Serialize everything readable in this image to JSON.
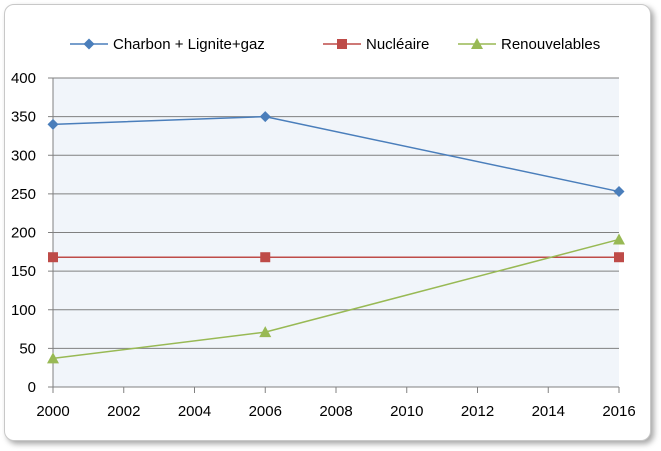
{
  "chart_data": {
    "type": "line",
    "title": "",
    "xlabel": "",
    "ylabel": "",
    "xlim": [
      2000,
      2016
    ],
    "ylim": [
      0,
      400
    ],
    "x_ticks": [
      "2000",
      "2002",
      "2004",
      "2006",
      "2008",
      "2010",
      "2012",
      "2014",
      "2016"
    ],
    "y_ticks": [
      "0",
      "50",
      "100",
      "150",
      "200",
      "250",
      "300",
      "350",
      "400"
    ],
    "grid": "horizontal",
    "legend_position": "top",
    "plot_background": "#f1f5fa",
    "series": [
      {
        "name": "Charbon + Lignite+gaz",
        "color": "#4a7ebb",
        "marker": "diamond",
        "x": [
          2000,
          2006,
          2016
        ],
        "y": [
          340,
          350,
          253
        ]
      },
      {
        "name": "Nucléaire",
        "color": "#be4b48",
        "marker": "square",
        "x": [
          2000,
          2006,
          2016
        ],
        "y": [
          168,
          168,
          168
        ]
      },
      {
        "name": "Renouvelables",
        "color": "#98b954",
        "marker": "triangle",
        "x": [
          2000,
          2006,
          2016
        ],
        "y": [
          37,
          71,
          191
        ]
      }
    ]
  }
}
